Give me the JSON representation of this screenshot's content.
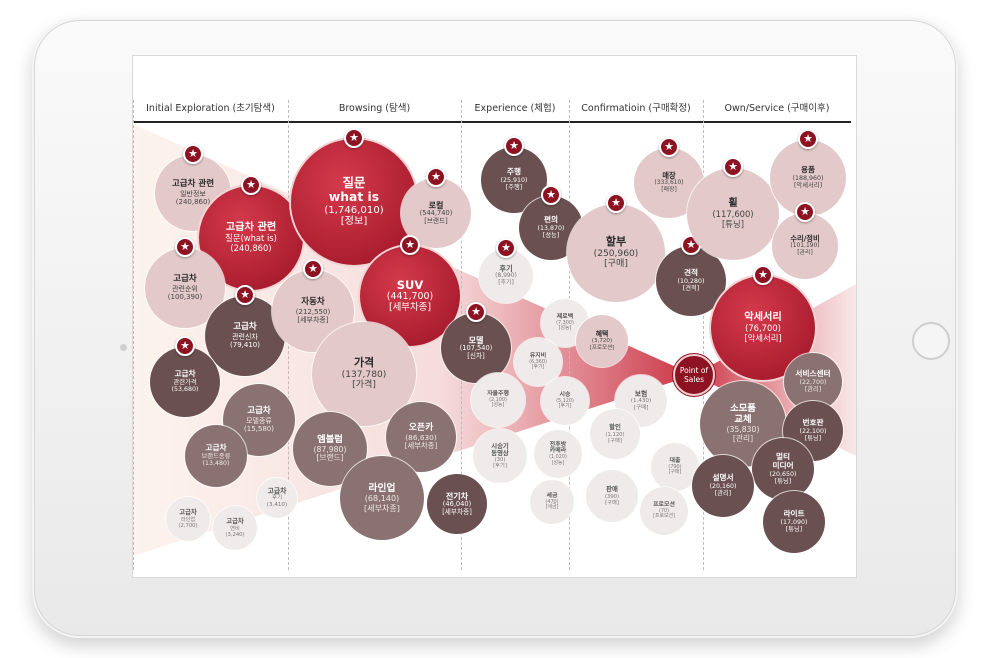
{
  "stages": [
    "Initial Exploration (초기탐색)",
    "Browsing (탐색)",
    "Experience (체험)",
    "Confirmatioin (구매확정)",
    "Own/Service (구매이후)"
  ],
  "point_of_sales": [
    "Point of",
    "Sales"
  ],
  "colors": {
    "dark_red": "#a3192b",
    "red": "#c8283a",
    "light_pink": "#e3c9c9",
    "gray_brown": "#7a5e5e",
    "dark_brown": "#5f4848",
    "light_gray": "#eeeaea",
    "star": "#8e1322"
  },
  "bubbles": [
    {
      "lines": [
        "고급차 관련",
        "일반정보",
        "(240,860)"
      ]
    },
    {
      "lines": [
        "고급차 관련",
        "질문(what is)",
        "(240,860)"
      ]
    },
    {
      "lines": [
        "고급차",
        "관련순위",
        "(100,390)"
      ]
    },
    {
      "lines": [
        "고급차",
        "관련신차",
        "(79,410)"
      ]
    },
    {
      "lines": [
        "고급차",
        "관련가격",
        "(53,680)"
      ]
    },
    {
      "lines": [
        "고급차",
        "모델종류",
        "(15,580)"
      ]
    },
    {
      "lines": [
        "고급차",
        "브랜드종류",
        "(13,480)"
      ]
    },
    {
      "lines": [
        "고급차",
        "후기",
        "(3,410)"
      ]
    },
    {
      "lines": [
        "고급차",
        "라인업",
        "(2,700)"
      ]
    },
    {
      "lines": [
        "고급차",
        "연비",
        "(3,240)"
      ]
    },
    {
      "lines": [
        "질문",
        "what is",
        "(1,746,010)",
        "[정보]"
      ]
    },
    {
      "lines": [
        "로컬",
        "(544,740)",
        "[브랜드]"
      ]
    },
    {
      "lines": [
        "SUV",
        "(441,700)",
        "[세부차종]"
      ]
    },
    {
      "lines": [
        "자동차",
        "(212,550)",
        "[세부차종]"
      ]
    },
    {
      "lines": [
        "가격",
        "(137,780)",
        "[가격]"
      ]
    },
    {
      "lines": [
        "엠블럼",
        "(87,980)",
        "[브랜드]"
      ]
    },
    {
      "lines": [
        "오픈카",
        "(86,630)",
        "[세부차종]"
      ]
    },
    {
      "lines": [
        "라인업",
        "(68,140)",
        "[세부차종]"
      ]
    },
    {
      "lines": [
        "전기차",
        "(46,040)",
        "[세부차종]"
      ]
    },
    {
      "lines": [
        "주행",
        "(25,910)",
        "[주행]"
      ]
    },
    {
      "lines": [
        "편의",
        "(13,870)",
        "[성능]"
      ]
    },
    {
      "lines": [
        "후기",
        "(8,990)",
        "[후기]"
      ]
    },
    {
      "lines": [
        "모델",
        "(107,540)",
        "[신차]"
      ]
    },
    {
      "lines": [
        "제로백",
        "(7,300)",
        "[성능]"
      ]
    },
    {
      "lines": [
        "유지비",
        "(6,360)",
        "[후기]"
      ]
    },
    {
      "lines": [
        "자율주행",
        "(2,100)",
        "[성능]"
      ]
    },
    {
      "lines": [
        "시승",
        "(5,120)",
        "[후기]"
      ]
    },
    {
      "lines": [
        "시승기",
        "동영상",
        "(30)",
        "[후기]"
      ]
    },
    {
      "lines": [
        "전후방",
        "카메라",
        "(1,020)",
        "[성능]"
      ]
    },
    {
      "lines": [
        "세금",
        "(470)",
        "[세금]"
      ]
    },
    {
      "lines": [
        "매장",
        "(333,610)",
        "[매장]"
      ]
    },
    {
      "lines": [
        "할부",
        "(250,960)",
        "[구매]"
      ]
    },
    {
      "lines": [
        "견적",
        "(10,280)",
        "[견적]"
      ]
    },
    {
      "lines": [
        "혜택",
        "(3,720)",
        "[프로모션]"
      ]
    },
    {
      "lines": [
        "보험",
        "(1,430)",
        "[구매]"
      ]
    },
    {
      "lines": [
        "할인",
        "(1,120)",
        "[구매]"
      ]
    },
    {
      "lines": [
        "대출",
        "(790)",
        "[구매]"
      ]
    },
    {
      "lines": [
        "판매",
        "(390)",
        "[구매]"
      ]
    },
    {
      "lines": [
        "프로모션",
        "(70)",
        "[프로모션]"
      ]
    },
    {
      "lines": [
        "휠",
        "(117,600)",
        "[튜닝]"
      ]
    },
    {
      "lines": [
        "용품",
        "(188,960)",
        "[악세서리]"
      ]
    },
    {
      "lines": [
        "수리/정비",
        "(101,190)",
        "[관리]"
      ]
    },
    {
      "lines": [
        "악세서리",
        "(76,700)",
        "[악세서리]"
      ]
    },
    {
      "lines": [
        "서비스센터",
        "(22,700)",
        "[관리]"
      ]
    },
    {
      "lines": [
        "소모품",
        "교체",
        "(35,830)",
        "[관리]"
      ]
    },
    {
      "lines": [
        "번호판",
        "(22,100)",
        "[튜닝]"
      ]
    },
    {
      "lines": [
        "멀티",
        "미디어",
        "(20,650)",
        "[튜닝]"
      ]
    },
    {
      "lines": [
        "설명서",
        "(20,160)",
        "[관리]"
      ]
    },
    {
      "lines": [
        "라이트",
        "(17,090)",
        "[튜닝]"
      ]
    }
  ]
}
